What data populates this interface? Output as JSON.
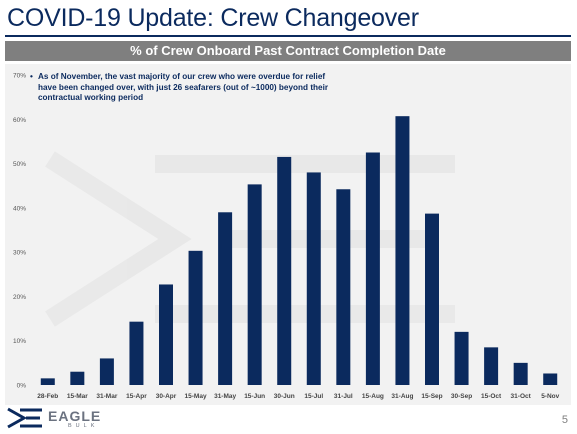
{
  "slide": {
    "title": "COVID-19 Update: Crew Changeover",
    "page_number": "5"
  },
  "chart_header": "% of Crew Onboard Past Contract Completion Date",
  "note": {
    "bullet": "•",
    "text": "As of November, the vast majority of our crew who were overdue for relief have been changed over, with just 26 seafarers (out of ~1000) beyond their contractual working period"
  },
  "logo": {
    "word": "EAGLE",
    "sub": "BULK"
  },
  "colors": {
    "title": "#0b2a5e",
    "bar": "#0b2a5e",
    "header_bg": "#7f7f7f",
    "panel_bg": "#f2f2f2"
  },
  "chart_data": {
    "type": "bar",
    "title": "% of Crew Onboard Past Contract Completion Date",
    "xlabel": "",
    "ylabel": "",
    "categories": [
      "28-Feb",
      "15-Mar",
      "31-Mar",
      "15-Apr",
      "30-Apr",
      "15-May",
      "31-May",
      "15-Jun",
      "30-Jun",
      "15-Jul",
      "31-Jul",
      "15-Aug",
      "31-Aug",
      "15-Sep",
      "30-Sep",
      "15-Oct",
      "31-Oct",
      "5-Nov"
    ],
    "values": [
      1.5,
      3.0,
      6.0,
      14.3,
      22.7,
      30.3,
      39.0,
      45.3,
      51.5,
      48.0,
      44.2,
      52.5,
      60.7,
      38.7,
      12.0,
      8.5,
      5.0,
      2.6
    ],
    "yticks": [
      "0%",
      "10%",
      "20%",
      "30%",
      "40%",
      "50%",
      "60%",
      "70%"
    ],
    "ylim": [
      0,
      70
    ],
    "grid": false,
    "legend": "none"
  }
}
